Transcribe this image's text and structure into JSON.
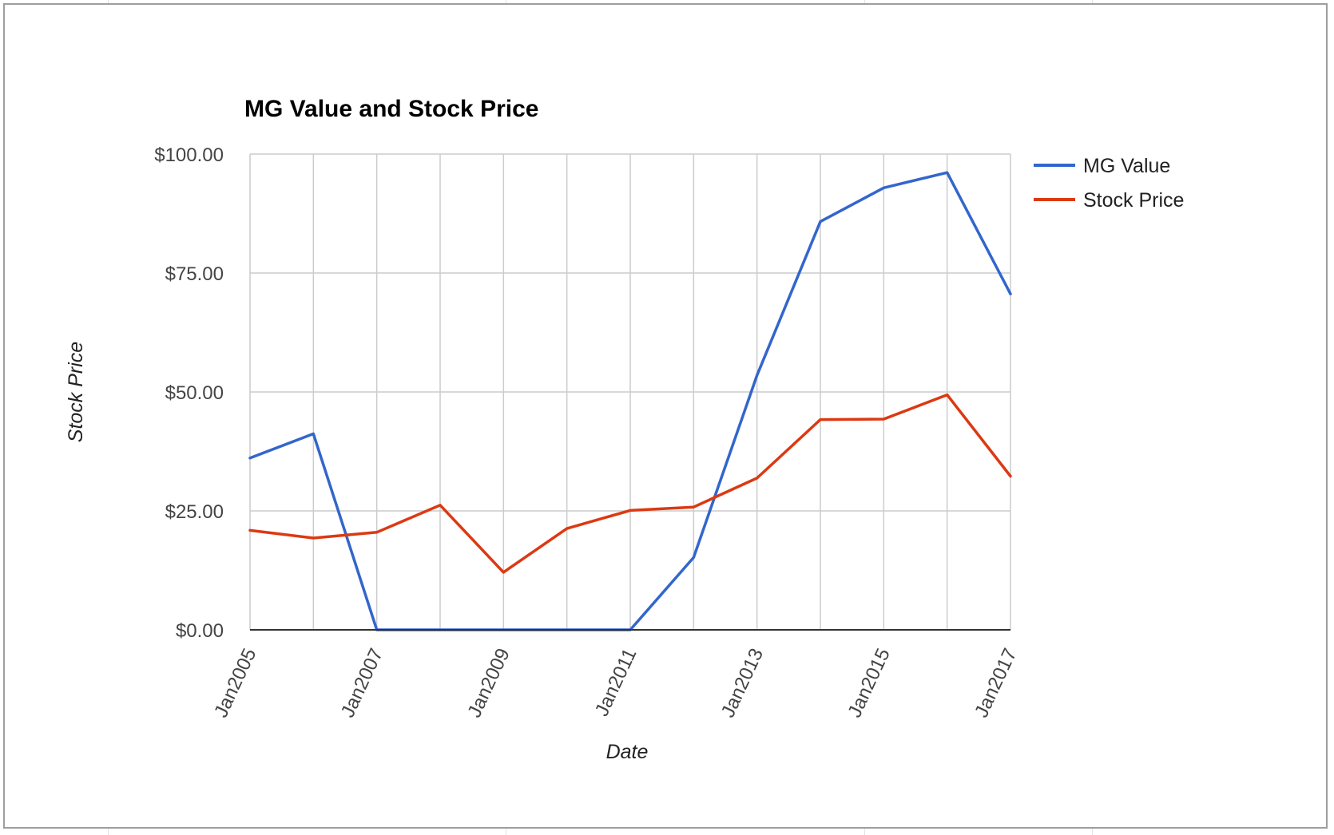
{
  "chart_data": {
    "type": "line",
    "title": "MG Value and Stock Price",
    "xlabel": "Date",
    "ylabel": "Stock Price",
    "x": [
      2005,
      2006,
      2007,
      2008,
      2009,
      2010,
      2011,
      2012,
      2013,
      2014,
      2015,
      2016,
      2017
    ],
    "x_ticks": [
      {
        "x": 2005,
        "label": "Jan2005"
      },
      {
        "x": 2007,
        "label": "Jan2007"
      },
      {
        "x": 2009,
        "label": "Jan2009"
      },
      {
        "x": 2011,
        "label": "Jan2011"
      },
      {
        "x": 2013,
        "label": "Jan2013"
      },
      {
        "x": 2015,
        "label": "Jan2015"
      },
      {
        "x": 2017,
        "label": "Jan2017"
      }
    ],
    "y_ticks": [
      {
        "y": 0,
        "label": "$0.00"
      },
      {
        "y": 25,
        "label": "$25.00"
      },
      {
        "y": 50,
        "label": "$50.00"
      },
      {
        "y": 75,
        "label": "$75.00"
      },
      {
        "y": 100,
        "label": "$100.00"
      }
    ],
    "xlim": [
      2005,
      2017
    ],
    "ylim": [
      0,
      100
    ],
    "grid": true,
    "legend_position": "top-right",
    "series": [
      {
        "name": "MG Value",
        "color": "#3366cc",
        "values": [
          36.1,
          41.2,
          0,
          0,
          0,
          0,
          0,
          15.2,
          53.5,
          85.8,
          92.9,
          96.1,
          70.6
        ]
      },
      {
        "name": "Stock Price",
        "color": "#dc3912",
        "values": [
          20.9,
          19.3,
          20.5,
          26.2,
          12.1,
          21.3,
          25.1,
          25.8,
          31.9,
          44.2,
          44.3,
          49.4,
          32.3
        ]
      }
    ]
  }
}
